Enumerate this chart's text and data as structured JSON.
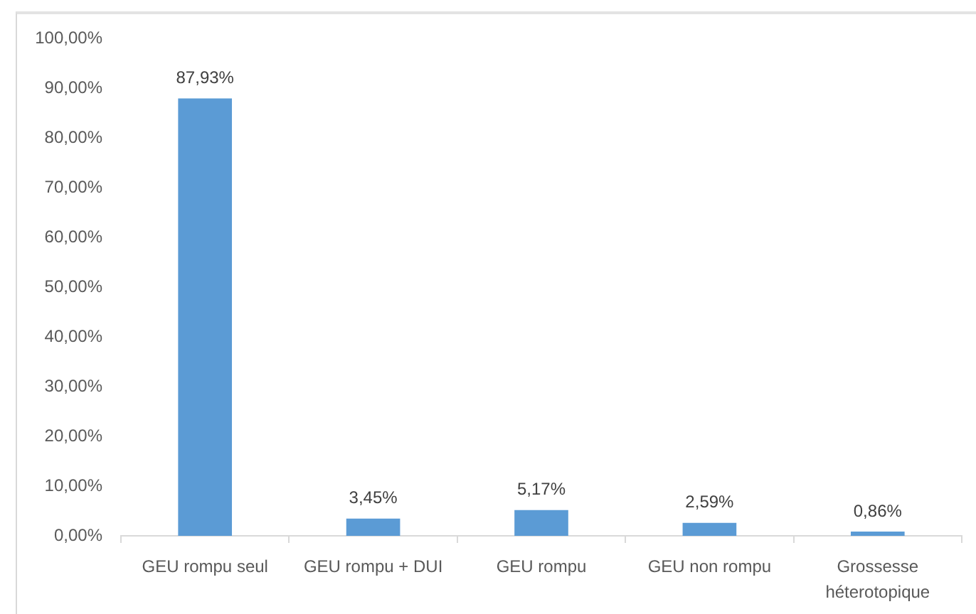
{
  "chart_data": {
    "type": "bar",
    "categories": [
      "GEU rompu seul",
      "GEU rompu + DUI",
      "GEU rompu",
      "GEU non rompu",
      "Grossesse héterotopique"
    ],
    "values": [
      87.93,
      3.45,
      5.17,
      2.59,
      0.86
    ],
    "value_labels": [
      "87,93%",
      "3,45%",
      "5,17%",
      "2,59%",
      "0,86%"
    ],
    "color": "#5b9bd5",
    "ylim": [
      0,
      100
    ],
    "yticks": [
      {
        "value": 0,
        "label": "0,00%"
      },
      {
        "value": 10,
        "label": "10,00%"
      },
      {
        "value": 20,
        "label": "20,00%"
      },
      {
        "value": 30,
        "label": "30,00%"
      },
      {
        "value": 40,
        "label": "40,00%"
      },
      {
        "value": 50,
        "label": "50,00%"
      },
      {
        "value": 60,
        "label": "60,00%"
      },
      {
        "value": 70,
        "label": "70,00%"
      },
      {
        "value": 80,
        "label": "80,00%"
      },
      {
        "value": 90,
        "label": "90,00%"
      },
      {
        "value": 100,
        "label": "100,00%"
      }
    ]
  }
}
